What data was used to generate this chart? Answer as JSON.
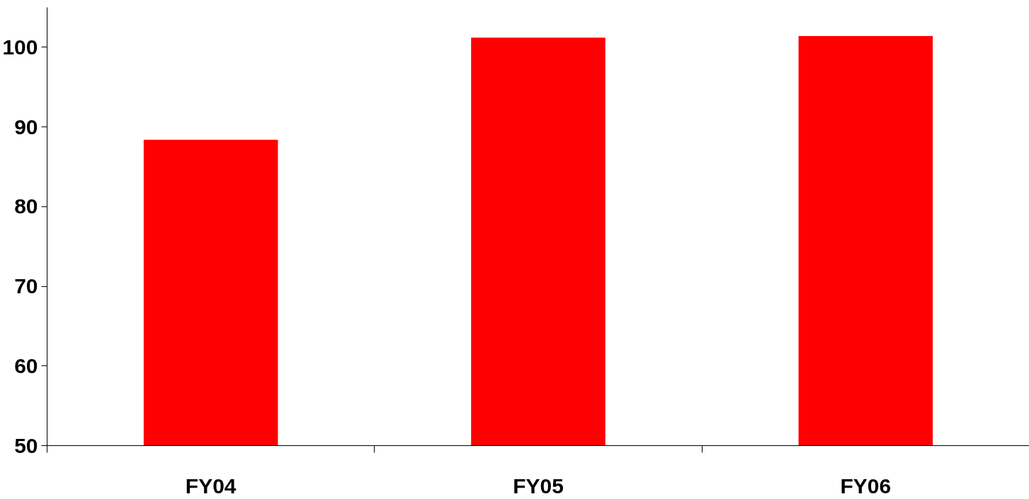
{
  "chart_data": {
    "type": "bar",
    "categories": [
      "FY04",
      "FY05",
      "FY06"
    ],
    "values": [
      88.4,
      101.2,
      101.4
    ],
    "color": "#ff0000",
    "ylim": [
      50,
      105
    ],
    "yticks": [
      50,
      60,
      70,
      80,
      90,
      100
    ],
    "grid": false
  }
}
